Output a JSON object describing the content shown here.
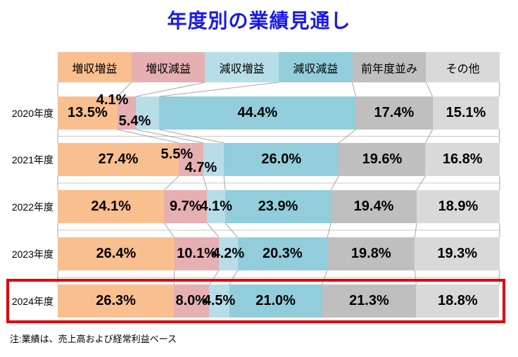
{
  "title": "年度別の業績見通し",
  "note": "注:業績は、売上高および経常利益ベース",
  "colors": {
    "title_text": "#1A1AE8",
    "highlight_border": "#E10000",
    "connector_line": "#A6A6A6",
    "gridline": "#C8C8C8",
    "label_text": "#000000"
  },
  "chart_data": {
    "type": "bar",
    "subtype": "horizontal-stacked-100pct",
    "title": "年度別の業績見通し",
    "legend_position": "top",
    "value_suffix": "%",
    "categories": [
      "増収増益",
      "増収減益",
      "減収増益",
      "減収減益",
      "前年度並み",
      "その他"
    ],
    "category_colors": [
      "#FABF8F",
      "#E6AFB2",
      "#B7DEE8",
      "#92CDDC",
      "#BFBFBF",
      "#D9D9D9"
    ],
    "rows": [
      {
        "year": "2020年度",
        "values": [
          13.5,
          4.1,
          5.4,
          44.4,
          17.4,
          15.1
        ],
        "label_layout": [
          "center",
          "above",
          "low",
          "center",
          "center",
          "center"
        ],
        "highlighted": false
      },
      {
        "year": "2021年度",
        "values": [
          27.4,
          5.5,
          4.7,
          26.0,
          19.6,
          16.8
        ],
        "label_layout": [
          "center",
          "high",
          "low",
          "center",
          "center",
          "center"
        ],
        "highlighted": false
      },
      {
        "year": "2022年度",
        "values": [
          24.1,
          9.7,
          4.1,
          23.9,
          19.4,
          18.9
        ],
        "label_layout": [
          "center",
          "center",
          "center",
          "center",
          "center",
          "center"
        ],
        "highlighted": false
      },
      {
        "year": "2023年度",
        "values": [
          26.4,
          10.1,
          4.2,
          20.3,
          19.8,
          19.3
        ],
        "label_layout": [
          "center",
          "center",
          "center",
          "center",
          "center",
          "center"
        ],
        "highlighted": false
      },
      {
        "year": "2024年度",
        "values": [
          26.3,
          8.0,
          4.5,
          21.0,
          21.3,
          18.8
        ],
        "label_layout": [
          "center",
          "center",
          "center",
          "center",
          "center",
          "center"
        ],
        "highlighted": true
      }
    ]
  }
}
